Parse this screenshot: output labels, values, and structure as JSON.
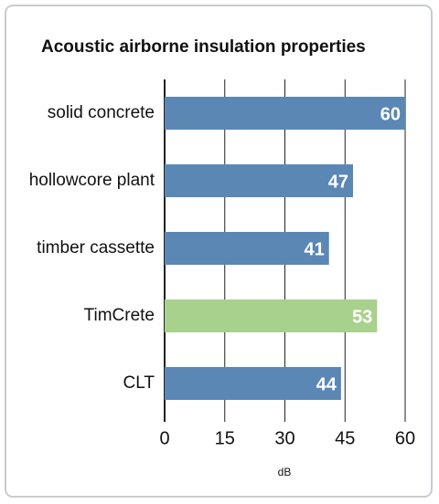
{
  "chart_data": {
    "type": "barh",
    "title": "Acoustic airborne insulation properties",
    "categories": [
      "solid concrete",
      "hollowcore plant",
      "timber cassette",
      "TimCrete",
      "CLT"
    ],
    "values": [
      60,
      47,
      41,
      53,
      44
    ],
    "colors": [
      "#5b87b5",
      "#5b87b5",
      "#5b87b5",
      "#a9d18e",
      "#5b87b5"
    ],
    "xlabel": "dB",
    "xlim": [
      0,
      60
    ],
    "xticks": [
      0,
      15,
      30,
      45,
      60
    ],
    "grid": true
  }
}
